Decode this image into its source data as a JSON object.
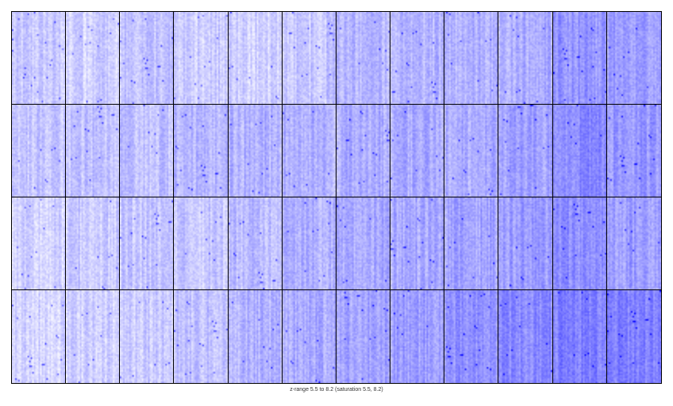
{
  "chart_data": {
    "type": "heatmap",
    "layout": {
      "rows": 4,
      "cols": 12
    },
    "colormap": {
      "low": "#ffffff",
      "high": "#0000ff"
    },
    "z_range": [
      5.5,
      8.2
    ],
    "saturation": [
      5.5,
      8.2
    ],
    "cell_mean_intensity": [
      [
        0.2,
        0.18,
        0.24,
        0.2,
        0.18,
        0.22,
        0.28,
        0.28,
        0.3,
        0.32,
        0.42,
        0.38
      ],
      [
        0.22,
        0.24,
        0.24,
        0.28,
        0.3,
        0.3,
        0.32,
        0.34,
        0.32,
        0.36,
        0.46,
        0.4
      ],
      [
        0.16,
        0.2,
        0.22,
        0.22,
        0.26,
        0.3,
        0.34,
        0.34,
        0.36,
        0.38,
        0.44,
        0.38
      ],
      [
        0.16,
        0.18,
        0.22,
        0.24,
        0.3,
        0.32,
        0.36,
        0.38,
        0.42,
        0.46,
        0.5,
        0.5
      ]
    ],
    "caption": "z-range 5.5 to 8.2 (saturation 5.5, 8.2)"
  }
}
